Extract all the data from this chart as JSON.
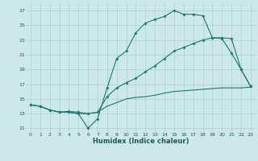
{
  "xlabel": "Humidex (Indice chaleur)",
  "bg_color": "#cce8e8",
  "line_color": "#1a7a6e",
  "grid_color": "#aad0d0",
  "xlim": [
    -0.5,
    23.5
  ],
  "ylim": [
    10.5,
    28.0
  ],
  "xticks": [
    0,
    1,
    2,
    3,
    4,
    5,
    6,
    7,
    8,
    9,
    10,
    11,
    12,
    13,
    14,
    15,
    16,
    17,
    18,
    19,
    20,
    21,
    22,
    23
  ],
  "yticks": [
    11,
    13,
    15,
    17,
    19,
    21,
    23,
    25,
    27
  ],
  "line1_x": [
    0,
    1,
    2,
    3,
    4,
    5,
    6,
    7,
    8,
    9,
    10,
    11,
    12,
    13,
    14,
    15,
    16,
    17,
    18,
    19,
    20,
    21,
    22,
    23
  ],
  "line1_y": [
    14.2,
    14.0,
    13.5,
    13.2,
    13.2,
    13.0,
    11.0,
    12.3,
    16.5,
    20.5,
    21.5,
    24.0,
    25.3,
    25.8,
    26.2,
    27.0,
    26.5,
    26.5,
    26.3,
    23.3,
    23.2,
    21.2,
    19.0,
    16.7
  ],
  "line2_x": [
    0,
    1,
    2,
    3,
    4,
    5,
    6,
    7,
    8,
    9,
    10,
    11,
    12,
    13,
    14,
    15,
    16,
    17,
    18,
    19,
    20,
    21,
    22,
    23
  ],
  "line2_y": [
    14.2,
    14.0,
    13.5,
    13.2,
    13.3,
    13.2,
    13.0,
    13.2,
    15.3,
    16.5,
    17.2,
    17.8,
    18.7,
    19.5,
    20.5,
    21.5,
    22.0,
    22.5,
    23.0,
    23.3,
    23.3,
    23.2,
    19.0,
    16.7
  ],
  "line3_x": [
    0,
    1,
    2,
    3,
    4,
    5,
    6,
    7,
    8,
    9,
    10,
    11,
    12,
    13,
    14,
    15,
    16,
    17,
    18,
    19,
    20,
    21,
    22,
    23
  ],
  "line3_y": [
    14.2,
    14.0,
    13.5,
    13.2,
    13.2,
    13.0,
    13.0,
    13.2,
    14.0,
    14.5,
    15.0,
    15.2,
    15.3,
    15.5,
    15.8,
    16.0,
    16.1,
    16.2,
    16.3,
    16.4,
    16.5,
    16.5,
    16.5,
    16.6
  ],
  "marker_size": 2.0,
  "line_width": 0.8
}
